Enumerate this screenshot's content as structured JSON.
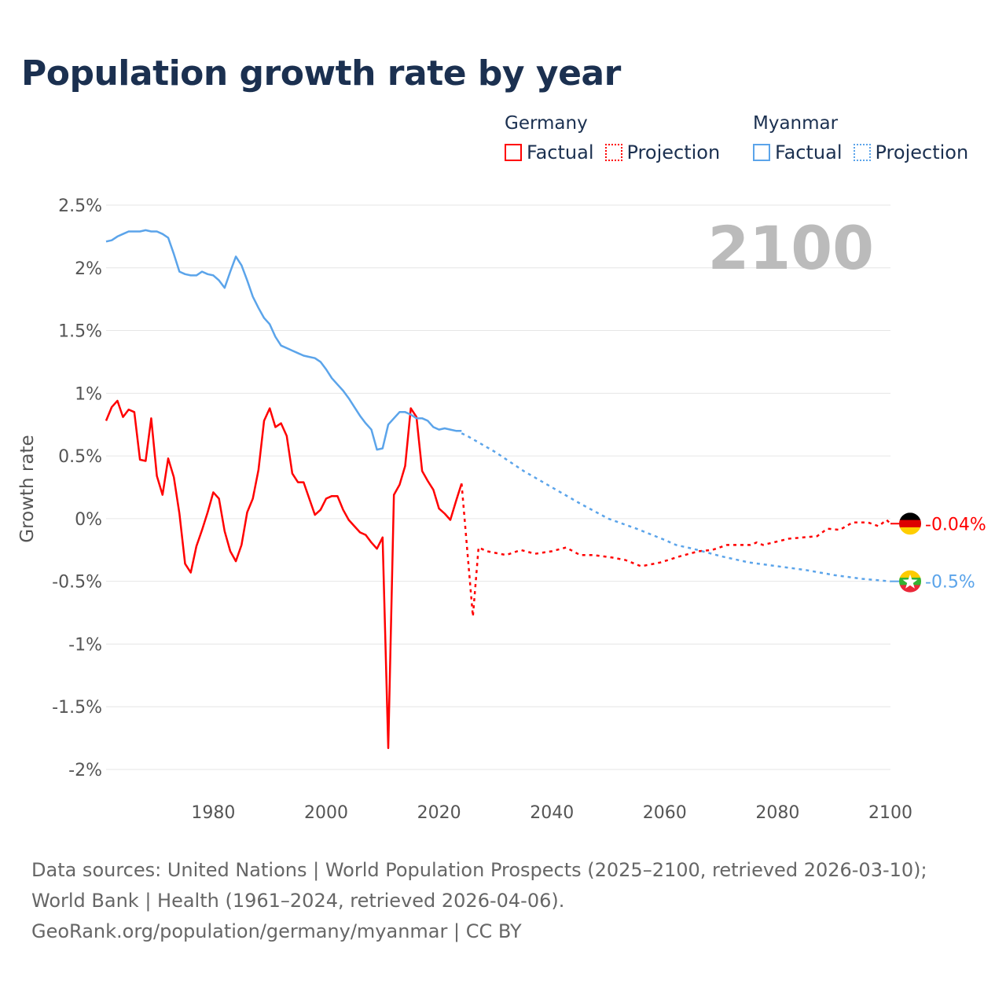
{
  "title": "Population growth rate by year",
  "legend": {
    "groups": [
      {
        "name": "Germany",
        "factual": "Factual",
        "projection": "Projection",
        "color": "#ff0000"
      },
      {
        "name": "Myanmar",
        "factual": "Factual",
        "projection": "Projection",
        "color": "#5ba4ea"
      }
    ]
  },
  "year_display": "2100",
  "footer": {
    "sources": "Data sources: United Nations | World Population Prospects (2025–2100, retrieved 2026-03-10); World Bank | Health (1961–2024, retrieved 2026-04-06).",
    "link": "GeoRank.org/population/germany/myanmar | CC BY"
  },
  "chart_data": {
    "type": "line",
    "title": "Population growth rate by year",
    "ylabel": "Growth rate",
    "xlabel": "",
    "xlim": [
      1961,
      2100
    ],
    "ylim": [
      -2,
      2.5
    ],
    "xticks": [
      1980,
      2000,
      2020,
      2040,
      2060,
      2080,
      2100
    ],
    "xtick_labels": [
      "1980",
      "2000",
      "2020",
      "2040",
      "2060",
      "2080",
      "2100"
    ],
    "yticks": [
      2.5,
      2,
      1.5,
      1,
      0.5,
      0,
      -0.5,
      -1,
      -1.5,
      -2
    ],
    "ytick_labels": [
      "2.5%",
      "2%",
      "1.5%",
      "1%",
      "0.5%",
      "0%",
      "-0.5%",
      "-1%",
      "-1.5%",
      "-2%"
    ],
    "grid": true,
    "legend_position": "top-right",
    "series": [
      {
        "name": "Germany Factual",
        "color": "#ff0000",
        "style": "solid",
        "start_year": 1961,
        "values": [
          0.78,
          0.89,
          0.94,
          0.81,
          0.87,
          0.85,
          0.47,
          0.46,
          0.8,
          0.34,
          0.19,
          0.48,
          0.33,
          0.04,
          -0.36,
          -0.43,
          -0.22,
          -0.09,
          0.05,
          0.21,
          0.16,
          -0.1,
          -0.26,
          -0.34,
          -0.21,
          0.05,
          0.16,
          0.39,
          0.78,
          0.88,
          0.73,
          0.76,
          0.66,
          0.36,
          0.29,
          0.29,
          0.16,
          0.03,
          0.07,
          0.16,
          0.18,
          0.18,
          0.07,
          -0.01,
          -0.06,
          -0.11,
          -0.13,
          -0.19,
          -0.24,
          -0.15,
          -1.83,
          0.19,
          0.27,
          0.42,
          0.88,
          0.81,
          0.38,
          0.3,
          0.23,
          0.08,
          0.04,
          -0.01,
          0.14,
          0.28
        ]
      },
      {
        "name": "Germany Projection",
        "color": "#ff0000",
        "style": "dotted",
        "points": [
          [
            2024,
            0.28
          ],
          [
            2025,
            -0.25
          ],
          [
            2026,
            -0.78
          ],
          [
            2027,
            -0.23
          ],
          [
            2028.5,
            -0.26
          ],
          [
            2031.9,
            -0.29
          ],
          [
            2034.5,
            -0.25
          ],
          [
            2037,
            -0.28
          ],
          [
            2040,
            -0.26
          ],
          [
            2042.5,
            -0.23
          ],
          [
            2045,
            -0.29
          ],
          [
            2047.3,
            -0.29
          ],
          [
            2050.7,
            -0.31
          ],
          [
            2053,
            -0.33
          ],
          [
            2055.8,
            -0.38
          ],
          [
            2059.2,
            -0.35
          ],
          [
            2062.7,
            -0.3
          ],
          [
            2066,
            -0.26
          ],
          [
            2068.4,
            -0.25
          ],
          [
            2071,
            -0.21
          ],
          [
            2075.2,
            -0.21
          ],
          [
            2076.3,
            -0.19
          ],
          [
            2077.4,
            -0.21
          ],
          [
            2082,
            -0.16
          ],
          [
            2087,
            -0.14
          ],
          [
            2088.8,
            -0.08
          ],
          [
            2091,
            -0.09
          ],
          [
            2093.3,
            -0.03
          ],
          [
            2096,
            -0.03
          ],
          [
            2097.9,
            -0.06
          ],
          [
            2099.3,
            -0.01
          ],
          [
            2100,
            -0.04
          ]
        ]
      },
      {
        "name": "Myanmar Factual",
        "color": "#5ba4ea",
        "style": "solid",
        "start_year": 1961,
        "values": [
          2.21,
          2.22,
          2.25,
          2.27,
          2.29,
          2.29,
          2.29,
          2.3,
          2.29,
          2.29,
          2.27,
          2.24,
          2.11,
          1.97,
          1.95,
          1.94,
          1.94,
          1.97,
          1.95,
          1.94,
          1.9,
          1.84,
          1.97,
          2.09,
          2.02,
          1.9,
          1.77,
          1.68,
          1.6,
          1.55,
          1.45,
          1.38,
          1.36,
          1.34,
          1.32,
          1.3,
          1.29,
          1.28,
          1.25,
          1.19,
          1.12,
          1.07,
          1.02,
          0.96,
          0.89,
          0.82,
          0.76,
          0.71,
          0.55,
          0.56,
          0.75,
          0.8,
          0.85,
          0.85,
          0.83,
          0.8,
          0.8,
          0.78,
          0.73,
          0.71,
          0.72,
          0.71,
          0.7,
          0.7
        ]
      },
      {
        "name": "Myanmar Projection",
        "color": "#5ba4ea",
        "style": "dotted",
        "points": [
          [
            2024,
            0.68
          ],
          [
            2025,
            0.66
          ],
          [
            2030,
            0.53
          ],
          [
            2035,
            0.38
          ],
          [
            2040,
            0.25
          ],
          [
            2045,
            0.12
          ],
          [
            2050,
            0.0
          ],
          [
            2055,
            -0.08
          ],
          [
            2060,
            -0.17
          ],
          [
            2062,
            -0.21
          ],
          [
            2065,
            -0.24
          ],
          [
            2070,
            -0.3
          ],
          [
            2075,
            -0.35
          ],
          [
            2080,
            -0.38
          ],
          [
            2085,
            -0.41
          ],
          [
            2090,
            -0.45
          ],
          [
            2095,
            -0.48
          ],
          [
            2100,
            -0.5
          ]
        ]
      }
    ],
    "end_labels": [
      {
        "country": "Germany",
        "value": -0.04,
        "label": "-0.04%",
        "color": "#ff0000"
      },
      {
        "country": "Myanmar",
        "value": -0.5,
        "label": "-0.5%",
        "color": "#5ba4ea"
      }
    ]
  }
}
